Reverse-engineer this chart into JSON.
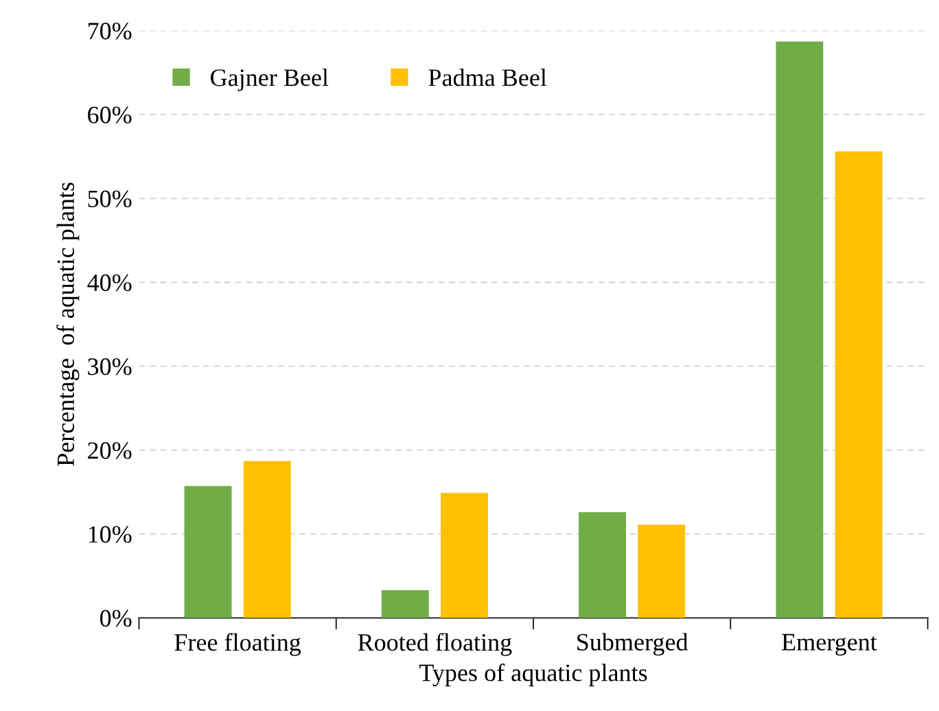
{
  "chart_data": {
    "type": "bar",
    "xlabel": "Types of aquatic plants",
    "ylabel": "Percentage  of aquatic plants",
    "categories": [
      "Free floating",
      "Rooted floating",
      "Submerged",
      "Emergent"
    ],
    "series": [
      {
        "name": "Gajner Beel",
        "color": "#70ad47",
        "values": [
          15.7,
          3.3,
          12.6,
          68.7
        ]
      },
      {
        "name": "Padma Beel",
        "color": "#ffc000",
        "values": [
          18.7,
          14.9,
          11.1,
          55.6
        ]
      }
    ],
    "ylim": [
      0,
      70
    ],
    "yticks": [
      {
        "value": 0,
        "label": "0%"
      },
      {
        "value": 10,
        "label": "10%"
      },
      {
        "value": 20,
        "label": "20%"
      },
      {
        "value": 30,
        "label": "30%"
      },
      {
        "value": 40,
        "label": "40%"
      },
      {
        "value": 50,
        "label": "50%"
      },
      {
        "value": 60,
        "label": "60%"
      },
      {
        "value": 70,
        "label": "70%"
      }
    ],
    "grid": "y",
    "legend": "top left"
  }
}
